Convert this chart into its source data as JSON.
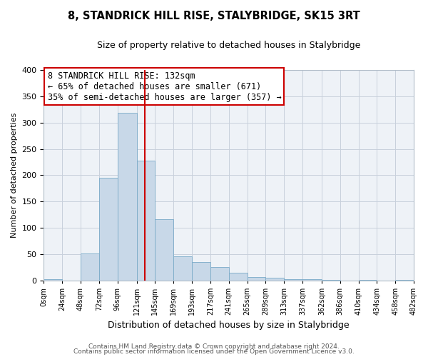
{
  "title": "8, STANDRICK HILL RISE, STALYBRIDGE, SK15 3RT",
  "subtitle": "Size of property relative to detached houses in Stalybridge",
  "xlabel": "Distribution of detached houses by size in Stalybridge",
  "ylabel": "Number of detached properties",
  "bin_edges": [
    0,
    24,
    48,
    72,
    96,
    121,
    145,
    169,
    193,
    217,
    241,
    265,
    289,
    313,
    337,
    362,
    386,
    410,
    434,
    458,
    482
  ],
  "bin_counts": [
    2,
    0,
    51,
    195,
    318,
    228,
    116,
    46,
    35,
    25,
    15,
    7,
    5,
    2,
    2,
    1,
    0,
    1,
    0,
    1
  ],
  "bar_color": "#c8d8e8",
  "bar_edge_color": "#7aaac8",
  "vline_x": 132,
  "vline_color": "#cc0000",
  "annotation_title": "8 STANDRICK HILL RISE: 132sqm",
  "annotation_line1": "← 65% of detached houses are smaller (671)",
  "annotation_line2": "35% of semi-detached houses are larger (357) →",
  "annotation_box_color": "#cc0000",
  "ylim": [
    0,
    400
  ],
  "yticks": [
    0,
    50,
    100,
    150,
    200,
    250,
    300,
    350,
    400
  ],
  "xtick_labels": [
    "0sqm",
    "24sqm",
    "48sqm",
    "72sqm",
    "96sqm",
    "121sqm",
    "145sqm",
    "169sqm",
    "193sqm",
    "217sqm",
    "241sqm",
    "265sqm",
    "289sqm",
    "313sqm",
    "337sqm",
    "362sqm",
    "386sqm",
    "410sqm",
    "434sqm",
    "458sqm",
    "482sqm"
  ],
  "footer1": "Contains HM Land Registry data © Crown copyright and database right 2024.",
  "footer2": "Contains public sector information licensed under the Open Government Licence v3.0.",
  "bg_color": "#eef2f7",
  "grid_color": "#c8d0dc",
  "title_fontsize": 10.5,
  "subtitle_fontsize": 9,
  "ylabel_fontsize": 8,
  "xlabel_fontsize": 9,
  "footer_fontsize": 6.5,
  "annot_fontsize": 8.5,
  "xtick_fontsize": 7,
  "ytick_fontsize": 8
}
